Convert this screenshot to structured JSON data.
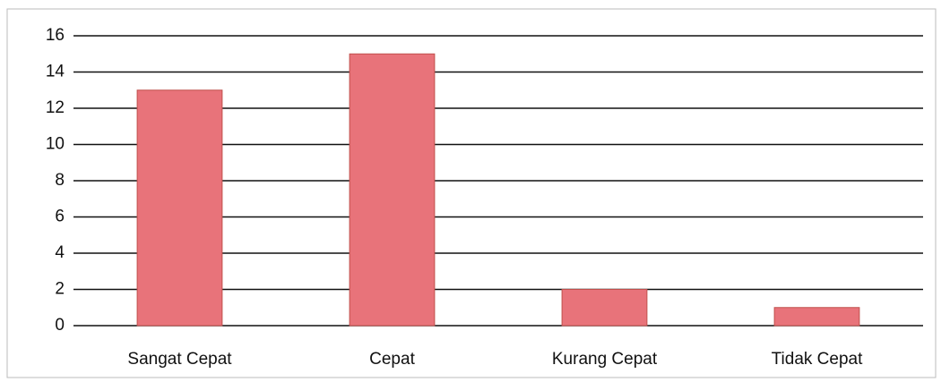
{
  "chart_data": {
    "type": "bar",
    "categories": [
      "Sangat Cepat",
      "Cepat",
      "Kurang Cepat",
      "Tidak Cepat"
    ],
    "values": [
      13,
      15,
      2,
      1
    ],
    "color": "#e8737a",
    "ylim": [
      0,
      16
    ],
    "yticks": [
      0,
      2,
      4,
      6,
      8,
      10,
      12,
      14,
      16
    ],
    "grid": true
  }
}
